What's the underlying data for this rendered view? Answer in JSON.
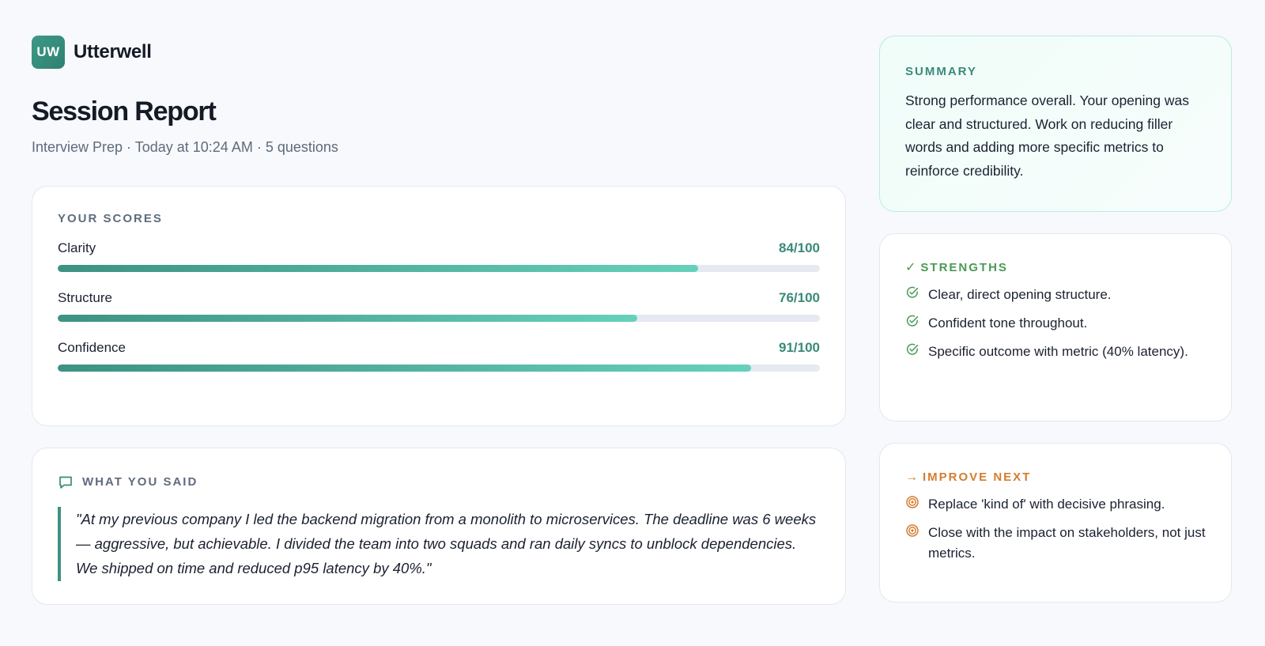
{
  "brand": {
    "logo_text": "UW",
    "name": "Utterwell"
  },
  "header": {
    "title": "Session Report",
    "meta": "Interview Prep · Today at 10:24 AM · 5 questions"
  },
  "scores": {
    "label": "YOUR SCORES",
    "items": [
      {
        "name": "Clarity",
        "value_text": "84/100",
        "value": 84
      },
      {
        "name": "Structure",
        "value_text": "76/100",
        "value": 76
      },
      {
        "name": "Confidence",
        "value_text": "91/100",
        "value": 91
      }
    ]
  },
  "what_you_said": {
    "label": "WHAT YOU SAID",
    "icon": "chat-bubble-icon",
    "quote": "\"At my previous company I led the backend migration from a monolith to microservices. The deadline was 6 weeks — aggressive, but achievable. I divided the team into two squads and ran daily syncs to unblock dependencies. We shipped on time and reduced p95 latency by 40%.\""
  },
  "summary": {
    "label": "SUMMARY",
    "text": "Strong performance overall. Your opening was clear and structured. Work on reducing filler words and adding more specific metrics to reinforce credibility."
  },
  "strengths": {
    "glyph": "✓",
    "label": "STRENGTHS",
    "icon": "check-circle-icon",
    "items": [
      "Clear, direct opening structure.",
      "Confident tone throughout.",
      "Specific outcome with metric (40% latency)."
    ]
  },
  "improve": {
    "glyph": "→",
    "label": "IMPROVE NEXT",
    "icon": "target-icon",
    "items": [
      "Replace 'kind of' with decisive phrasing.",
      "Close with the impact on stakeholders, not just metrics."
    ]
  },
  "colors": {
    "accent": "#3a8a79",
    "bar_start": "#3d9282",
    "bar_end": "#66d1bb",
    "strength_green": "#4a9a55",
    "improve_orange": "#d47c2f"
  }
}
